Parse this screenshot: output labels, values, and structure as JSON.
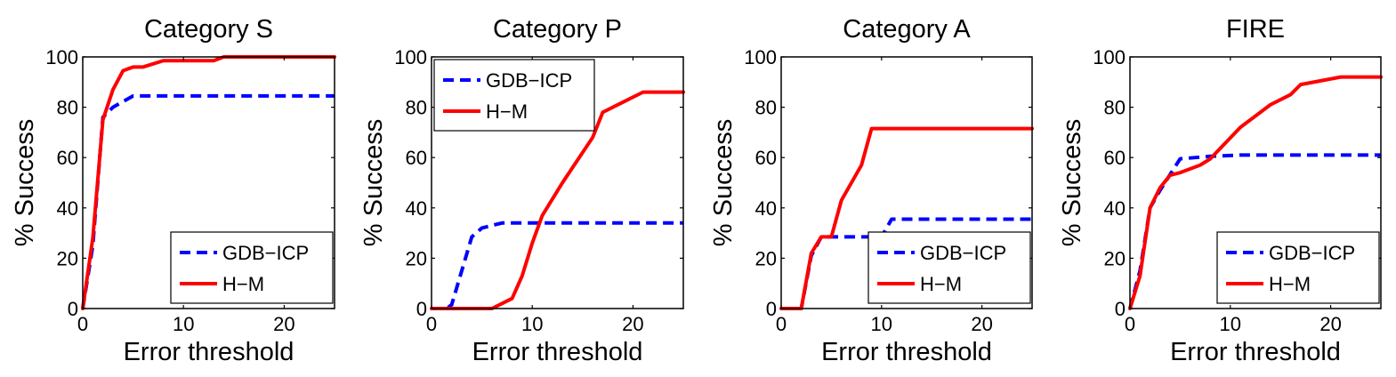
{
  "chart_data": [
    {
      "type": "line",
      "title": "Category S",
      "xlabel": "Error threshold",
      "ylabel": "% Success",
      "xlim": [
        0,
        25
      ],
      "ylim": [
        0,
        100
      ],
      "xticks": [
        0,
        10,
        20
      ],
      "yticks": [
        0,
        20,
        40,
        60,
        80,
        100
      ],
      "legend_position": "bottom-right",
      "series": [
        {
          "name": "GDB−ICP",
          "color": "#0000ff",
          "style": "dashed",
          "x": [
            0,
            1,
            2,
            3,
            5,
            25
          ],
          "y": [
            0,
            25,
            76,
            80,
            84.5,
            84.5
          ]
        },
        {
          "name": "H−M",
          "color": "#ff0000",
          "style": "solid",
          "x": [
            0,
            1,
            2,
            3,
            4,
            5,
            6,
            8,
            9,
            10,
            13,
            14,
            25
          ],
          "y": [
            0,
            28,
            75,
            87,
            94.5,
            96,
            96,
            98.5,
            98.5,
            98.5,
            98.5,
            100,
            100
          ]
        }
      ]
    },
    {
      "type": "line",
      "title": "Category P",
      "xlabel": "Error threshold",
      "ylabel": "% Success",
      "xlim": [
        0,
        25
      ],
      "ylim": [
        0,
        100
      ],
      "xticks": [
        0,
        10,
        20
      ],
      "yticks": [
        0,
        20,
        40,
        60,
        80,
        100
      ],
      "legend_position": "top-left",
      "series": [
        {
          "name": "GDB−ICP",
          "color": "#0000ff",
          "style": "dashed",
          "x": [
            0,
            1.5,
            2,
            3,
            4,
            5,
            7,
            8,
            25
          ],
          "y": [
            0,
            0,
            1.5,
            15,
            28.5,
            32,
            34,
            34,
            34
          ]
        },
        {
          "name": "H−M",
          "color": "#ff0000",
          "style": "solid",
          "x": [
            0,
            6,
            8,
            9,
            10,
            11,
            13,
            16,
            17,
            19,
            21,
            25
          ],
          "y": [
            0,
            0,
            4,
            13,
            26,
            37,
            50,
            68,
            78,
            82,
            86,
            86
          ]
        }
      ]
    },
    {
      "type": "line",
      "title": "Category A",
      "xlabel": "Error threshold",
      "ylabel": "% Success",
      "xlim": [
        0,
        25
      ],
      "ylim": [
        0,
        100
      ],
      "xticks": [
        0,
        10,
        20
      ],
      "yticks": [
        0,
        20,
        40,
        60,
        80,
        100
      ],
      "legend_position": "bottom-right",
      "series": [
        {
          "name": "GDB−ICP",
          "color": "#0000ff",
          "style": "dashed",
          "x": [
            0,
            2,
            3,
            4,
            10,
            11,
            25
          ],
          "y": [
            0,
            0,
            21,
            28.5,
            28.5,
            35.5,
            35.5
          ]
        },
        {
          "name": "H−M",
          "color": "#ff0000",
          "style": "solid",
          "x": [
            0,
            2,
            3,
            4,
            5,
            6,
            8,
            9,
            25
          ],
          "y": [
            0,
            0,
            22,
            28.5,
            28.5,
            43,
            57,
            71.5,
            71.5
          ]
        }
      ]
    },
    {
      "type": "line",
      "title": "FIRE",
      "xlabel": "Error threshold",
      "ylabel": "% Success",
      "xlim": [
        0,
        25
      ],
      "ylim": [
        0,
        100
      ],
      "xticks": [
        0,
        10,
        20
      ],
      "yticks": [
        0,
        20,
        40,
        60,
        80,
        100
      ],
      "legend_position": "bottom-right",
      "series": [
        {
          "name": "GDB−ICP",
          "color": "#0000ff",
          "style": "dashed",
          "x": [
            0,
            1,
            2,
            3,
            5,
            8,
            11,
            25
          ],
          "y": [
            0,
            15,
            40,
            47,
            59.5,
            60.5,
            61,
            61
          ]
        },
        {
          "name": "H−M",
          "color": "#ff0000",
          "style": "solid",
          "x": [
            0,
            1,
            2,
            3,
            4,
            5,
            7,
            8,
            11,
            14,
            16,
            17,
            19,
            21,
            25
          ],
          "y": [
            0,
            13,
            40,
            48,
            53,
            54,
            57,
            59.5,
            72,
            81,
            85,
            89,
            90.5,
            92,
            92
          ]
        }
      ]
    }
  ]
}
